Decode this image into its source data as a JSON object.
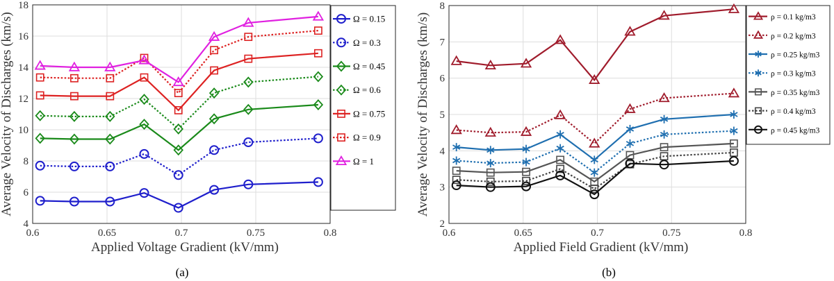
{
  "chart_data": [
    {
      "type": "line",
      "panel_caption": "(a)",
      "xlabel": "Applied Voltage Gradient (kV/mm)",
      "ylabel": "Average Velocity of Discharges (km/s)",
      "xlim": [
        0.6,
        0.8
      ],
      "ylim": [
        4,
        18
      ],
      "xticks": [
        "0.6",
        "0.65",
        "0.7",
        "0.75",
        "0.8"
      ],
      "yticks": [
        "4",
        "6",
        "8",
        "10",
        "12",
        "14",
        "16",
        "18"
      ],
      "grid": true,
      "legend_position": "right",
      "x": [
        0.605,
        0.628,
        0.652,
        0.675,
        0.698,
        0.722,
        0.745,
        0.792
      ],
      "series": [
        {
          "name": "Ω = 0.15",
          "color": "#1f1fcc",
          "dash": "solid",
          "marker": "circle",
          "values": [
            5.45,
            5.4,
            5.4,
            5.95,
            5.0,
            6.15,
            6.5,
            6.65
          ]
        },
        {
          "name": "Ω = 0.3",
          "color": "#1f1fcc",
          "dash": "dotted",
          "marker": "circle",
          "values": [
            7.7,
            7.65,
            7.65,
            8.45,
            7.1,
            8.7,
            9.2,
            9.45
          ]
        },
        {
          "name": "Ω = 0.45",
          "color": "#1a8a1a",
          "dash": "solid",
          "marker": "diamond",
          "values": [
            9.45,
            9.4,
            9.4,
            10.35,
            8.7,
            10.7,
            11.3,
            11.6
          ]
        },
        {
          "name": "Ω = 0.6",
          "color": "#1a8a1a",
          "dash": "dotted",
          "marker": "diamond",
          "values": [
            10.9,
            10.85,
            10.85,
            11.95,
            10.05,
            12.35,
            13.05,
            13.4
          ]
        },
        {
          "name": "Ω = 0.75",
          "color": "#dd2222",
          "dash": "solid",
          "marker": "square",
          "values": [
            12.2,
            12.15,
            12.15,
            13.35,
            11.25,
            13.8,
            14.55,
            14.9
          ]
        },
        {
          "name": "Ω = 0.9",
          "color": "#dd2222",
          "dash": "dotted",
          "marker": "square",
          "values": [
            13.35,
            13.3,
            13.3,
            14.6,
            12.35,
            15.1,
            15.95,
            16.35
          ]
        },
        {
          "name": "Ω = 1",
          "color": "#e020e0",
          "dash": "solid",
          "marker": "triangle",
          "values": [
            14.1,
            14.0,
            14.0,
            14.45,
            13.05,
            15.95,
            16.85,
            17.25
          ]
        }
      ]
    },
    {
      "type": "line",
      "panel_caption": "(b)",
      "xlabel": "Applied Field Gradient (kV/mm)",
      "ylabel": "Average Velocity of Discharges (km/s)",
      "xlim": [
        0.6,
        0.8
      ],
      "ylim": [
        2,
        8
      ],
      "xticks": [
        "0.6",
        "0.65",
        "0.7",
        "0.75",
        "0.8"
      ],
      "yticks": [
        "2",
        "3",
        "4",
        "5",
        "6",
        "7",
        "8"
      ],
      "grid": true,
      "legend_position": "right",
      "x": [
        0.605,
        0.628,
        0.652,
        0.675,
        0.698,
        0.722,
        0.745,
        0.792
      ],
      "series": [
        {
          "name": "ρ = 0.1 kg/m3",
          "color": "#a01c2c",
          "dash": "solid",
          "marker": "triangle",
          "values": [
            6.47,
            6.35,
            6.4,
            7.05,
            5.95,
            7.28,
            7.72,
            7.9
          ]
        },
        {
          "name": "ρ = 0.2 kg/m3",
          "color": "#a01c2c",
          "dash": "dotted",
          "marker": "triangle",
          "values": [
            4.57,
            4.5,
            4.52,
            4.98,
            4.2,
            5.15,
            5.45,
            5.58
          ]
        },
        {
          "name": "ρ = 0.25 kg/m3",
          "color": "#1f6fb0",
          "dash": "solid",
          "marker": "asterisk",
          "values": [
            4.1,
            4.02,
            4.05,
            4.45,
            3.75,
            4.6,
            4.87,
            5.0
          ]
        },
        {
          "name": "ρ = 0.3 kg/m3",
          "color": "#1f6fb0",
          "dash": "dotted",
          "marker": "asterisk",
          "values": [
            3.73,
            3.66,
            3.69,
            4.07,
            3.4,
            4.2,
            4.45,
            4.55
          ]
        },
        {
          "name": "ρ = 0.35 kg/m3",
          "color": "#555555",
          "dash": "solid",
          "marker": "square",
          "values": [
            3.45,
            3.4,
            3.42,
            3.75,
            3.15,
            3.88,
            4.1,
            4.2
          ]
        },
        {
          "name": "ρ = 0.4 kg/m3",
          "color": "#444444",
          "dash": "dotted",
          "marker": "square",
          "values": [
            3.2,
            3.15,
            3.17,
            3.5,
            2.95,
            3.63,
            3.85,
            3.95
          ]
        },
        {
          "name": "ρ = 0.45 kg/m3",
          "color": "#111111",
          "dash": "solid",
          "marker": "circle",
          "values": [
            3.05,
            3.0,
            3.02,
            3.32,
            2.8,
            3.65,
            3.62,
            3.72
          ]
        }
      ]
    }
  ]
}
